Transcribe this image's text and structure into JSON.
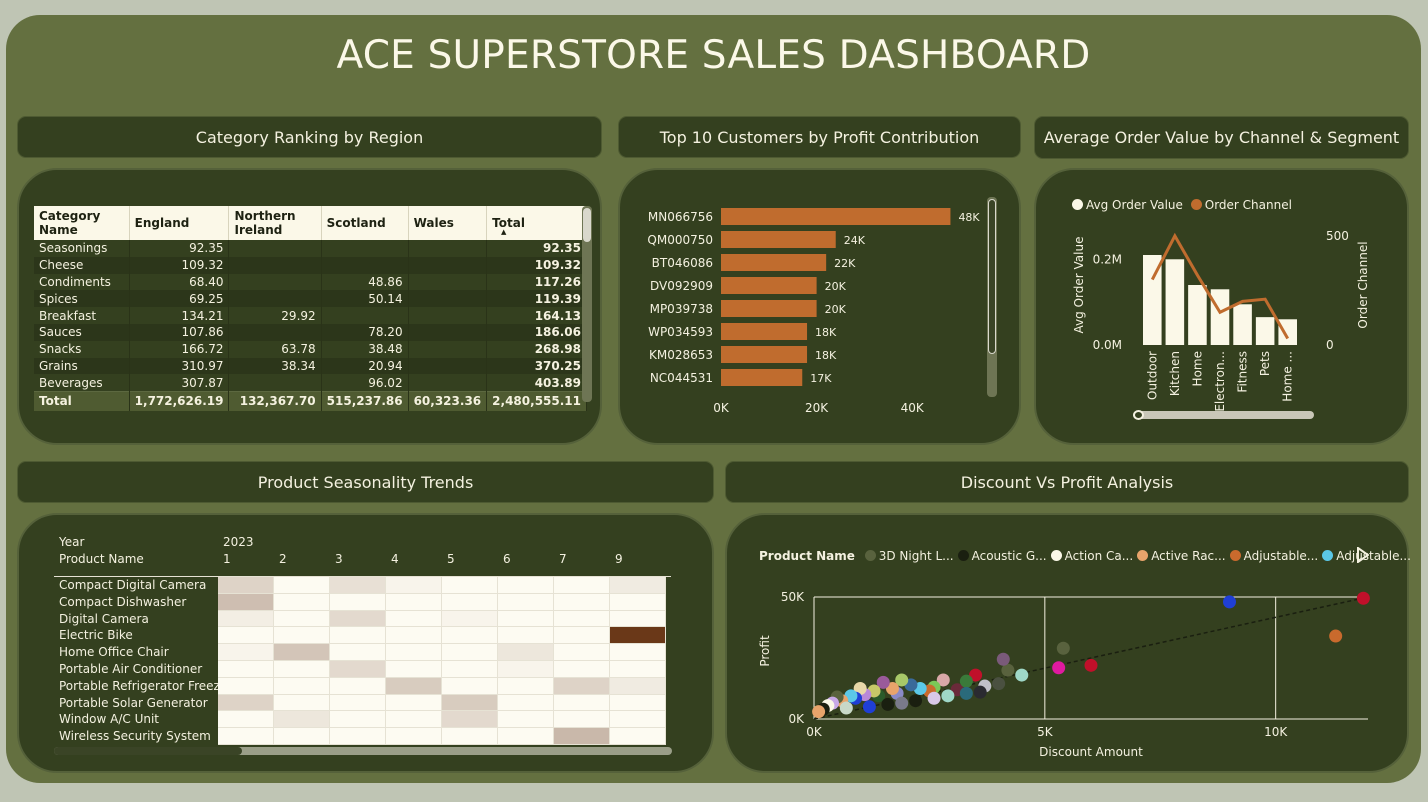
{
  "title": "ACE SUPERSTORE SALES DASHBOARD",
  "category_ranking": {
    "header": "Category Ranking by Region",
    "columns": [
      "Category Name",
      "England",
      "Northern Ireland",
      "Scotland",
      "Wales",
      "Total"
    ],
    "rows": [
      [
        "Seasonings",
        "92.35",
        "",
        "",
        "",
        "92.35"
      ],
      [
        "Cheese",
        "109.32",
        "",
        "",
        "",
        "109.32"
      ],
      [
        "Condiments",
        "68.40",
        "",
        "48.86",
        "",
        "117.26"
      ],
      [
        "Spices",
        "69.25",
        "",
        "50.14",
        "",
        "119.39"
      ],
      [
        "Breakfast",
        "134.21",
        "29.92",
        "",
        "",
        "164.13"
      ],
      [
        "Sauces",
        "107.86",
        "",
        "78.20",
        "",
        "186.06"
      ],
      [
        "Snacks",
        "166.72",
        "63.78",
        "38.48",
        "",
        "268.98"
      ],
      [
        "Grains",
        "310.97",
        "38.34",
        "20.94",
        "",
        "370.25"
      ],
      [
        "Beverages",
        "307.87",
        "",
        "96.02",
        "",
        "403.89"
      ]
    ],
    "total_row": [
      "Total",
      "1,772,626.19",
      "132,367.70",
      "515,237.86",
      "60,323.36",
      "2,480,555.11"
    ]
  },
  "top_customers": {
    "header": "Top 10 Customers by Profit Contribution",
    "x_ticks": [
      "0K",
      "20K",
      "40K"
    ],
    "bar_color": "#c06c2e"
  },
  "avg_order": {
    "header": "Average Order Value by Channel & Segment",
    "legend": [
      "Avg Order Value",
      "Order Channel"
    ],
    "ylabel_left": "Avg Order Value",
    "ylabel_right": "Order Channel",
    "y_left_ticks": [
      "0.2M",
      "0.0M"
    ],
    "y_right_ticks": [
      "500",
      "0"
    ]
  },
  "seasonality": {
    "header": "Product Seasonality Trends",
    "year_label": "Year",
    "year_value": "2023",
    "product_label": "Product Name",
    "months": [
      "1",
      "2",
      "3",
      "4",
      "5",
      "6",
      "7",
      "9"
    ],
    "products": [
      "Compact Digital Camera",
      "Compact Dishwasher",
      "Digital Camera",
      "Electric Bike",
      "Home Office Chair",
      "Portable Air Conditioner",
      "Portable Refrigerator Freezer",
      "Portable Solar Generator",
      "Window A/C Unit",
      "Wireless Security System"
    ],
    "intensity": [
      [
        0.3,
        0,
        0.2,
        0.05,
        0,
        0,
        0,
        0.12
      ],
      [
        0.45,
        0,
        0,
        0,
        0,
        0,
        0,
        0
      ],
      [
        0.1,
        0,
        0.25,
        0,
        0.05,
        0,
        0,
        0
      ],
      [
        0,
        0,
        0,
        0,
        0,
        0,
        0,
        1.0
      ],
      [
        0.05,
        0.4,
        0,
        0,
        0,
        0.15,
        0,
        0
      ],
      [
        0,
        0,
        0.25,
        0,
        0,
        0.05,
        0,
        0
      ],
      [
        0,
        0,
        0,
        0.35,
        0,
        0,
        0.3,
        0.12
      ],
      [
        0.3,
        0,
        0,
        0,
        0.35,
        0,
        0,
        0
      ],
      [
        0,
        0.15,
        0,
        0,
        0.25,
        0,
        0,
        0
      ],
      [
        0,
        0,
        0,
        0,
        0,
        0,
        0.5,
        0
      ]
    ]
  },
  "discount_profit": {
    "header": "Discount Vs Profit Analysis",
    "legend_title": "Product Name",
    "legend_items": [
      {
        "label": "3D Night L...",
        "color": "#59623e"
      },
      {
        "label": "Acoustic G...",
        "color": "#1a1f10"
      },
      {
        "label": "Action Ca...",
        "color": "#fbf8e8"
      },
      {
        "label": "Active Rac...",
        "color": "#e8a46b"
      },
      {
        "label": "Adjustable...",
        "color": "#c96a2d"
      },
      {
        "label": "Adjustable...",
        "color": "#5bc8e8"
      }
    ],
    "xlabel": "Discount Amount",
    "ylabel": "Profit",
    "x_ticks": [
      "0K",
      "5K",
      "10K"
    ],
    "y_ticks": [
      "50K",
      "0K"
    ]
  },
  "chart_data": [
    {
      "type": "bar",
      "categories": [
        "MN066756",
        "QM000750",
        "BT046086",
        "DV092909",
        "MP039738",
        "WP034593",
        "KM028653",
        "NC044531"
      ],
      "values": [
        48,
        24,
        22,
        20,
        20,
        18,
        18,
        17
      ],
      "labels": [
        "48K",
        "24K",
        "22K",
        "20K",
        "20K",
        "18K",
        "18K",
        "17K"
      ],
      "xlim": [
        0,
        50
      ]
    },
    {
      "type": "bar",
      "categories": [
        "Outdoor",
        "Kitchen",
        "Home",
        "Electron...",
        "Fitness",
        "Pets",
        "Home ..."
      ],
      "series": [
        {
          "name": "Avg Order Value",
          "values": [
            0.21,
            0.2,
            0.14,
            0.13,
            0.095,
            0.065,
            0.06
          ]
        },
        {
          "name": "Order Channel",
          "values": [
            300,
            500,
            320,
            150,
            200,
            210,
            30
          ]
        }
      ],
      "ylim_left": [
        0,
        0.28
      ],
      "ylim_right": [
        0,
        550
      ]
    },
    {
      "type": "scatter",
      "xlim": [
        0,
        12000
      ],
      "ylim": [
        0,
        55000
      ],
      "points": [
        [
          9000,
          48000,
          "#1f3fd6"
        ],
        [
          11900,
          49500,
          "#c0102a"
        ],
        [
          11300,
          34000,
          "#c96a2d"
        ],
        [
          5400,
          29000,
          "#59623e"
        ],
        [
          5300,
          21000,
          "#e01aa0"
        ],
        [
          6000,
          22000,
          "#c0102a"
        ],
        [
          4500,
          18000,
          "#9fd8c8"
        ],
        [
          4200,
          20000,
          "#59623e"
        ],
        [
          4100,
          24500,
          "#7a5a7a"
        ],
        [
          4000,
          14500,
          "#4a5040"
        ],
        [
          3700,
          13500,
          "#c0c0c8"
        ],
        [
          3500,
          18000,
          "#c0102a"
        ],
        [
          3100,
          12000,
          "#6a2a3a"
        ],
        [
          3300,
          15500,
          "#3a7a3a"
        ],
        [
          2800,
          16000,
          "#d8a8a8"
        ],
        [
          2600,
          13000,
          "#7ac858"
        ],
        [
          2500,
          11500,
          "#c96a2d"
        ],
        [
          2300,
          12500,
          "#5bc8e8"
        ],
        [
          2100,
          14000,
          "#3a6a9a"
        ],
        [
          1900,
          16000,
          "#a8c868"
        ],
        [
          1800,
          10500,
          "#8a8ac8"
        ],
        [
          1700,
          12500,
          "#e8a46b"
        ],
        [
          1500,
          15000,
          "#9a5a9a"
        ],
        [
          1400,
          9500,
          "#2a5a2a"
        ],
        [
          1300,
          11500,
          "#c8c868"
        ],
        [
          1100,
          10000,
          "#b888d8"
        ],
        [
          1000,
          12500,
          "#e8d8a8"
        ],
        [
          900,
          8500,
          "#1f3fd6"
        ],
        [
          800,
          9500,
          "#5bc8e8"
        ],
        [
          600,
          7500,
          "#e8a46b"
        ],
        [
          500,
          9000,
          "#59623e"
        ],
        [
          400,
          6500,
          "#c8a8e8"
        ],
        [
          300,
          5500,
          "#fbf8e8"
        ],
        [
          200,
          4000,
          "#1a1f10"
        ],
        [
          100,
          3000,
          "#e8a46b"
        ],
        [
          2900,
          9500,
          "#9fd8c8"
        ],
        [
          3600,
          11000,
          "#2a2a30"
        ],
        [
          2200,
          7500,
          "#1a1f10"
        ],
        [
          1600,
          6000,
          "#1a1f10"
        ],
        [
          1200,
          5000,
          "#1f3fd6"
        ],
        [
          700,
          4500,
          "#c8d8c8"
        ],
        [
          1900,
          6500,
          "#7a7a8a"
        ],
        [
          2600,
          8500,
          "#d8c8e8"
        ],
        [
          3300,
          10500,
          "#2a6a7a"
        ]
      ]
    }
  ]
}
